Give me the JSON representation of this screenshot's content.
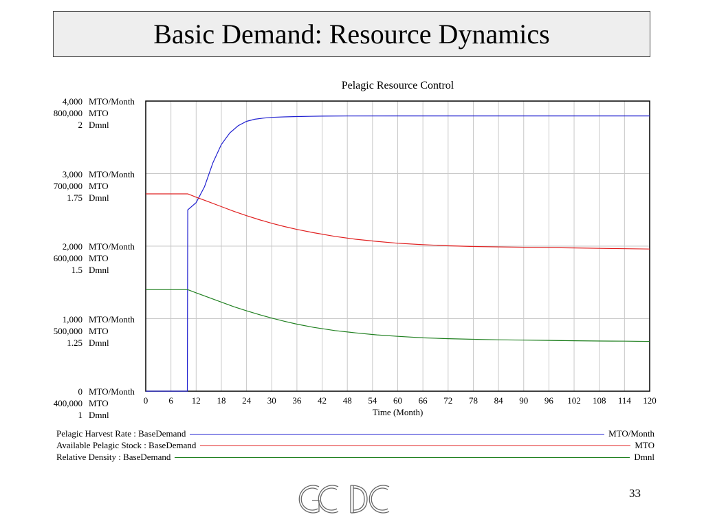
{
  "slide": {
    "title": "Basic Demand: Resource Dynamics",
    "page_number": "33",
    "logo_text": "GCDC"
  },
  "chart_data": {
    "type": "line",
    "title": "Pelagic Resource Control",
    "xlabel": "Time (Month)",
    "xlim": [
      0,
      120
    ],
    "x_ticks": [
      "0",
      "6",
      "12",
      "18",
      "24",
      "30",
      "36",
      "42",
      "48",
      "54",
      "60",
      "66",
      "72",
      "78",
      "84",
      "90",
      "96",
      "102",
      "108",
      "114",
      "120"
    ],
    "y_axes": [
      {
        "unit": "MTO/Month",
        "range": [
          0,
          4000
        ],
        "tick_labels": [
          "4,000",
          "3,000",
          "2,000",
          "1,000",
          "0"
        ]
      },
      {
        "unit": "MTO",
        "range": [
          400000,
          800000
        ],
        "tick_labels": [
          "800,000",
          "700,000",
          "600,000",
          "500,000",
          "400,000"
        ]
      },
      {
        "unit": "Dmnl",
        "range": [
          1,
          2
        ],
        "tick_labels": [
          "2",
          "1.75",
          "1.5",
          "1.25",
          "1"
        ]
      }
    ],
    "grid": true,
    "series": [
      {
        "name": "Pelagic Harvest Rate : BaseDemand",
        "unit": "MTO/Month",
        "color": "#2020d0",
        "axis": 0,
        "x": [
          0,
          9.9,
          10,
          12,
          14,
          16,
          18,
          20,
          22,
          24,
          26,
          28,
          30,
          33,
          36,
          39,
          42,
          48,
          60,
          80,
          100,
          120
        ],
        "values": [
          0,
          0,
          2500,
          2600,
          2820,
          3150,
          3400,
          3560,
          3660,
          3720,
          3750,
          3765,
          3775,
          3782,
          3787,
          3790,
          3792,
          3794,
          3795,
          3795,
          3795,
          3795
        ]
      },
      {
        "name": "Available Pelagic Stock : BaseDemand",
        "unit": "MTO",
        "color": "#e02020",
        "axis": 1,
        "x": [
          0,
          10,
          12,
          15,
          18,
          21,
          24,
          27,
          30,
          33,
          36,
          40,
          45,
          50,
          55,
          60,
          66,
          72,
          78,
          84,
          90,
          96,
          102,
          108,
          114,
          120
        ],
        "values": [
          672000,
          672000,
          667500,
          661000,
          654500,
          648000,
          642000,
          636500,
          631500,
          627000,
          623000,
          618500,
          613500,
          609500,
          606500,
          604000,
          602000,
          600500,
          599500,
          599000,
          598500,
          598000,
          597500,
          597000,
          596500,
          596000
        ]
      },
      {
        "name": "Relative Density : BaseDemand",
        "unit": "Dmnl",
        "color": "#208020",
        "axis": 2,
        "x": [
          0,
          10,
          12,
          15,
          18,
          21,
          24,
          27,
          30,
          33,
          36,
          40,
          45,
          50,
          55,
          60,
          66,
          72,
          78,
          84,
          90,
          96,
          102,
          108,
          114,
          120
        ],
        "values": [
          1.35,
          1.35,
          1.339,
          1.323,
          1.307,
          1.291,
          1.277,
          1.264,
          1.252,
          1.241,
          1.231,
          1.22,
          1.209,
          1.201,
          1.194,
          1.189,
          1.184,
          1.181,
          1.179,
          1.177,
          1.176,
          1.175,
          1.174,
          1.173,
          1.1725,
          1.1715
        ]
      }
    ]
  }
}
